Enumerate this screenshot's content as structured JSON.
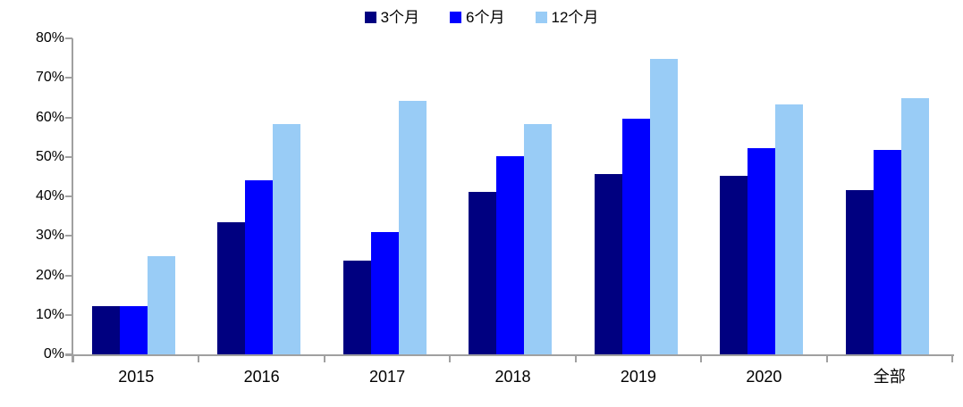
{
  "chart_data": {
    "type": "bar",
    "title": "",
    "categories": [
      "2015",
      "2016",
      "2017",
      "2018",
      "2019",
      "2020",
      "全部"
    ],
    "series": [
      {
        "name": "3个月",
        "color": "#000080",
        "values": [
          12.3,
          33.5,
          23.7,
          41.1,
          45.7,
          45.2,
          41.6
        ]
      },
      {
        "name": "6个月",
        "color": "#0000ff",
        "values": [
          12.3,
          44.1,
          31.0,
          50.1,
          59.7,
          52.2,
          51.7
        ]
      },
      {
        "name": "12个月",
        "color": "#99ccf6",
        "values": [
          24.8,
          58.2,
          64.2,
          58.2,
          74.8,
          63.3,
          64.8
        ]
      }
    ],
    "ylim": [
      0,
      80
    ],
    "ytick_step": 10,
    "ytick_labels": [
      "0%",
      "10%",
      "20%",
      "30%",
      "40%",
      "50%",
      "60%",
      "70%",
      "80%"
    ],
    "grid": false,
    "legend_position": "top",
    "axis_color": "#a0a0a0",
    "background_color": "#ffffff"
  }
}
